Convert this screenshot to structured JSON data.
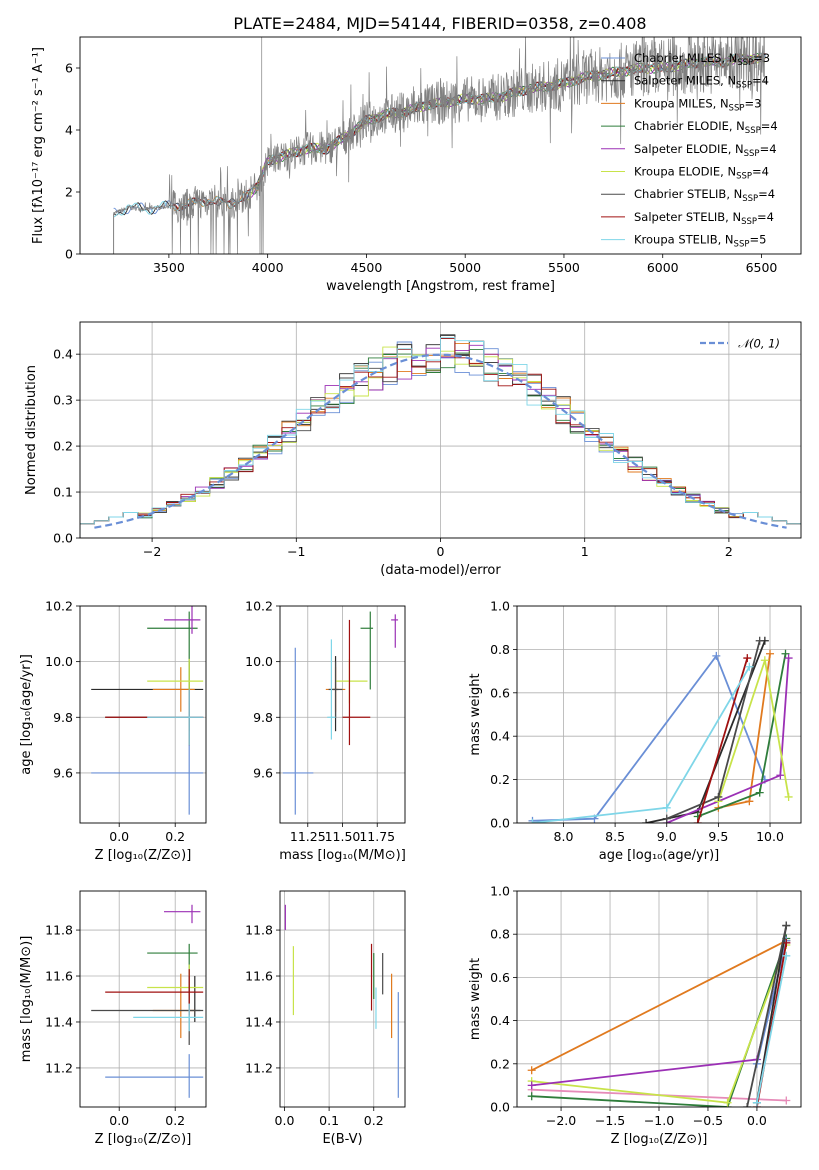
{
  "figure": {
    "title": "PLATE=2484, MJD=54144, FIBERID=0358, z=0.408"
  },
  "models": [
    {
      "name": "Chabrier MILES",
      "n": "3",
      "color": "#6a8fd6"
    },
    {
      "name": "Salpeter MILES",
      "n": "4",
      "color": "#2b2b2b"
    },
    {
      "name": "Kroupa MILES",
      "n": "3",
      "color": "#e07a1f"
    },
    {
      "name": "Chabrier ELODIE",
      "n": "4",
      "color": "#2f7d3b"
    },
    {
      "name": "Salpeter ELODIE",
      "n": "4",
      "color": "#9b30b5"
    },
    {
      "name": "Kroupa ELODIE",
      "n": "4",
      "color": "#c8e34a"
    },
    {
      "name": "Chabrier STELIB",
      "n": "4",
      "color": "#4a4a4a"
    },
    {
      "name": "Salpeter STELIB",
      "n": "4",
      "color": "#a01010"
    },
    {
      "name": "Kroupa STELIB",
      "n": "5",
      "color": "#7fd6e8"
    }
  ],
  "chart_data": [
    {
      "id": "spectrum",
      "type": "line",
      "xlabel": "wavelength [Angstrom, rest frame]",
      "ylabel": "Flux [fλ10⁻¹⁷ erg cm⁻² s⁻¹ A⁻¹]",
      "xlim": [
        3050,
        6700
      ],
      "ylim": [
        0,
        7
      ],
      "xticks": [
        3500,
        4000,
        4500,
        5000,
        5500,
        6000,
        6500
      ],
      "yticks": [
        0,
        2,
        4,
        6
      ],
      "data_color": "#808080",
      "continuum": [
        [
          3220,
          1.3
        ],
        [
          3300,
          1.5
        ],
        [
          3400,
          1.45
        ],
        [
          3500,
          1.55
        ],
        [
          3600,
          1.6
        ],
        [
          3700,
          1.75
        ],
        [
          3800,
          1.6
        ],
        [
          3900,
          1.9
        ],
        [
          3950,
          2.2
        ],
        [
          4000,
          3.0
        ],
        [
          4100,
          3.2
        ],
        [
          4200,
          3.4
        ],
        [
          4300,
          3.4
        ],
        [
          4400,
          3.8
        ],
        [
          4500,
          4.3
        ],
        [
          4600,
          4.5
        ],
        [
          4700,
          4.6
        ],
        [
          4800,
          4.8
        ],
        [
          4900,
          4.9
        ],
        [
          5000,
          5.0
        ],
        [
          5100,
          5.0
        ],
        [
          5200,
          5.1
        ],
        [
          5300,
          5.3
        ],
        [
          5400,
          5.4
        ],
        [
          5500,
          5.5
        ],
        [
          5600,
          5.7
        ],
        [
          5700,
          5.8
        ],
        [
          5800,
          5.9
        ],
        [
          5900,
          6.0
        ],
        [
          6000,
          6.0
        ],
        [
          6100,
          6.1
        ],
        [
          6200,
          6.2
        ],
        [
          6300,
          6.2
        ],
        [
          6400,
          6.3
        ],
        [
          6520,
          6.3
        ]
      ],
      "model_starts": [
        3220,
        3220,
        3520,
        3900,
        3900,
        3900,
        3520,
        3520,
        3220
      ],
      "grid": false
    },
    {
      "id": "residuals",
      "type": "histogram",
      "xlabel": "(data-model)/error",
      "ylabel": "Normed distribution",
      "xlim": [
        -2.5,
        2.5
      ],
      "ylim": [
        0,
        0.47
      ],
      "xticks": [
        -2,
        -1,
        0,
        1,
        2
      ],
      "yticks": [
        0.0,
        0.1,
        0.2,
        0.3,
        0.4
      ],
      "reference_label": "𝒩(0, 1)",
      "reference_color": "#6a8fd6",
      "bins": [
        -2.5,
        2.5,
        50
      ],
      "grid": true
    },
    {
      "id": "age_vs_Z",
      "type": "scatter",
      "xlabel": "Z [log₁₀(Z/Z⊙)]",
      "ylabel": "age  [log₁₀(age/yr)]",
      "xlim": [
        -0.14,
        0.31
      ],
      "ylim": [
        9.42,
        10.2
      ],
      "xticks": [
        0.0,
        0.2
      ],
      "yticks": [
        9.6,
        9.8,
        10.0,
        10.2
      ],
      "points": [
        {
          "m": 0,
          "x": 0.25,
          "y": 9.6,
          "xerr": [
            0.35,
            0.05
          ],
          "yerr": [
            0.15,
            0.15
          ]
        },
        {
          "m": 1,
          "x": 0.25,
          "y": 9.9,
          "xerr": [
            0.35,
            0.05
          ],
          "yerr": [
            0.15,
            0.1
          ]
        },
        {
          "m": 2,
          "x": 0.22,
          "y": 9.9,
          "xerr": [
            0.1,
            0.05
          ],
          "yerr": [
            0.08,
            0.08
          ]
        },
        {
          "m": 3,
          "x": 0.25,
          "y": 10.12,
          "xerr": [
            0.15,
            0.03
          ],
          "yerr": [
            0.22,
            0.06
          ]
        },
        {
          "m": 4,
          "x": 0.26,
          "y": 10.15,
          "xerr": [
            0.1,
            0.03
          ],
          "yerr": [
            0.05,
            0.05
          ]
        },
        {
          "m": 5,
          "x": 0.25,
          "y": 9.93,
          "xerr": [
            0.15,
            0.05
          ],
          "yerr": [
            0.08,
            0.08
          ]
        },
        {
          "m": 6,
          "x": 0.25,
          "y": 9.8,
          "xerr": [
            0.3,
            0.05
          ],
          "yerr": [
            0.1,
            0.1
          ]
        },
        {
          "m": 7,
          "x": 0.25,
          "y": 9.8,
          "xerr": [
            0.3,
            0.05
          ],
          "yerr": [
            0.1,
            0.1
          ]
        },
        {
          "m": 8,
          "x": 0.25,
          "y": 9.8,
          "xerr": [
            0.15,
            0.05
          ],
          "yerr": [
            0.1,
            0.1
          ]
        }
      ],
      "grid": true
    },
    {
      "id": "age_vs_mass",
      "type": "scatter",
      "xlabel": "mass [log₁₀(M/M⊙)]",
      "ylabel": "",
      "xlim": [
        11.05,
        11.95
      ],
      "ylim": [
        9.42,
        10.2
      ],
      "xticks": [
        11.25,
        11.5,
        11.75
      ],
      "yticks": [
        9.6,
        9.8,
        10.0,
        10.2
      ],
      "xtick_labels": [
        "11.25",
        "11.50",
        "11.75"
      ],
      "points": [
        {
          "m": 0,
          "x": 11.16,
          "y": 9.6,
          "xerr": [
            0.09,
            0.13
          ],
          "yerr": [
            0.15,
            0.45
          ]
        },
        {
          "m": 1,
          "x": 11.45,
          "y": 9.9,
          "xerr": [
            0.02,
            0.02
          ],
          "yerr": [
            0.15,
            0.12
          ]
        },
        {
          "m": 2,
          "x": 11.45,
          "y": 9.9,
          "xerr": [
            0.07,
            0.07
          ],
          "yerr": [
            0.08,
            0.08
          ]
        },
        {
          "m": 3,
          "x": 11.7,
          "y": 10.12,
          "xerr": [
            0.07,
            0.02
          ],
          "yerr": [
            0.22,
            0.06
          ]
        },
        {
          "m": 4,
          "x": 11.88,
          "y": 10.15,
          "xerr": [
            0.03,
            0.02
          ],
          "yerr": [
            0.1,
            0.02
          ]
        },
        {
          "m": 5,
          "x": 11.55,
          "y": 9.93,
          "xerr": [
            0.1,
            0.13
          ],
          "yerr": [
            0.08,
            0.08
          ]
        },
        {
          "m": 6,
          "x": 11.45,
          "y": 9.9,
          "xerr": [
            0.05,
            0.05
          ],
          "yerr": [
            0.1,
            0.1
          ]
        },
        {
          "m": 7,
          "x": 11.55,
          "y": 9.8,
          "xerr": [
            0.05,
            0.15
          ],
          "yerr": [
            0.1,
            0.35
          ]
        },
        {
          "m": 8,
          "x": 11.42,
          "y": 9.8,
          "xerr": [
            0.03,
            0.03
          ],
          "yerr": [
            0.08,
            0.28
          ]
        }
      ],
      "grid": true
    },
    {
      "id": "weight_vs_age",
      "type": "line",
      "xlabel": "age  [log₁₀(age/yr)]",
      "ylabel": "mass weight",
      "xlim": [
        7.55,
        10.3
      ],
      "ylim": [
        0,
        1
      ],
      "xticks": [
        8.0,
        8.5,
        9.0,
        9.5,
        10.0
      ],
      "yticks": [
        0.0,
        0.2,
        0.4,
        0.6,
        0.8,
        1.0
      ],
      "series": [
        {
          "m": 0,
          "x": [
            7.7,
            8.3,
            9.48,
            9.95
          ],
          "y": [
            0.01,
            0.02,
            0.77,
            0.2
          ]
        },
        {
          "m": 1,
          "x": [
            8.8,
            9.3,
            9.95
          ],
          "y": [
            0.0,
            0.05,
            0.84
          ]
        },
        {
          "m": 2,
          "x": [
            9.5,
            9.8,
            10.0
          ],
          "y": [
            0.07,
            0.1,
            0.78
          ]
        },
        {
          "m": 3,
          "x": [
            9.3,
            9.9,
            10.15
          ],
          "y": [
            0.03,
            0.14,
            0.78
          ]
        },
        {
          "m": 4,
          "x": [
            9.0,
            10.1,
            10.18
          ],
          "y": [
            0.0,
            0.22,
            0.76
          ]
        },
        {
          "m": 5,
          "x": [
            9.5,
            9.95,
            10.18
          ],
          "y": [
            0.1,
            0.75,
            0.12
          ]
        },
        {
          "m": 6,
          "x": [
            9.0,
            9.5,
            9.9
          ],
          "y": [
            0.02,
            0.12,
            0.84
          ]
        },
        {
          "m": 7,
          "x": [
            9.3,
            9.78
          ],
          "y": [
            0.0,
            0.76
          ]
        },
        {
          "m": 8,
          "x": [
            7.7,
            9.0,
            9.8
          ],
          "y": [
            0.0,
            0.07,
            0.72
          ]
        }
      ],
      "grid": true
    },
    {
      "id": "mass_vs_Z",
      "type": "scatter",
      "xlabel": "Z [log₁₀(Z/Z⊙)]",
      "ylabel": "mass [log₁₀(M/M⊙)]",
      "xlim": [
        -0.14,
        0.31
      ],
      "ylim": [
        11.03,
        11.97
      ],
      "xticks": [
        0.0,
        0.2
      ],
      "yticks": [
        11.2,
        11.4,
        11.6,
        11.8
      ],
      "points": [
        {
          "m": 0,
          "x": 0.25,
          "y": 11.16,
          "xerr": [
            0.3,
            0.05
          ],
          "yerr": [
            0.09,
            0.1
          ]
        },
        {
          "m": 1,
          "x": 0.27,
          "y": 11.45,
          "xerr": [
            0.02,
            0.02
          ],
          "yerr": [
            0.05,
            0.15
          ]
        },
        {
          "m": 2,
          "x": 0.22,
          "y": 11.45,
          "xerr": [
            0.1,
            0.05
          ],
          "yerr": [
            0.12,
            0.16
          ]
        },
        {
          "m": 3,
          "x": 0.25,
          "y": 11.7,
          "xerr": [
            0.15,
            0.03
          ],
          "yerr": [
            0.1,
            0.04
          ]
        },
        {
          "m": 4,
          "x": 0.26,
          "y": 11.88,
          "xerr": [
            0.1,
            0.03
          ],
          "yerr": [
            0.05,
            0.03
          ]
        },
        {
          "m": 5,
          "x": 0.25,
          "y": 11.55,
          "xerr": [
            0.15,
            0.05
          ],
          "yerr": [
            0.1,
            0.1
          ]
        },
        {
          "m": 6,
          "x": 0.25,
          "y": 11.45,
          "xerr": [
            0.35,
            0.05
          ],
          "yerr": [
            0.15,
            0.15
          ]
        },
        {
          "m": 7,
          "x": 0.25,
          "y": 11.53,
          "xerr": [
            0.3,
            0.05
          ],
          "yerr": [
            0.1,
            0.1
          ]
        },
        {
          "m": 8,
          "x": 0.25,
          "y": 11.42,
          "xerr": [
            0.2,
            0.05
          ],
          "yerr": [
            0.06,
            0.06
          ]
        }
      ],
      "grid": true
    },
    {
      "id": "mass_vs_ebv",
      "type": "scatter",
      "xlabel": "E(B-V)",
      "ylabel": "",
      "xlim": [
        -0.01,
        0.27
      ],
      "ylim": [
        11.03,
        11.97
      ],
      "xticks": [
        0.0,
        0.1,
        0.2
      ],
      "yticks": [
        11.2,
        11.4,
        11.6,
        11.8
      ],
      "points": [
        {
          "m": 0,
          "x": 0.255,
          "y": 11.16,
          "xerr": [
            0,
            0
          ],
          "yerr": [
            0.09,
            0.37
          ]
        },
        {
          "m": 2,
          "x": 0.24,
          "y": 11.45,
          "xerr": [
            0,
            0
          ],
          "yerr": [
            0.12,
            0.16
          ]
        },
        {
          "m": 3,
          "x": 0.2,
          "y": 11.6,
          "xerr": [
            0,
            0
          ],
          "yerr": [
            0.1,
            0.1
          ]
        },
        {
          "m": 4,
          "x": 0.002,
          "y": 11.85,
          "xerr": [
            0,
            0
          ],
          "yerr": [
            0.05,
            0.06
          ]
        },
        {
          "m": 5,
          "x": 0.02,
          "y": 11.6,
          "xerr": [
            0,
            0
          ],
          "yerr": [
            0.17,
            0.13
          ]
        },
        {
          "m": 6,
          "x": 0.22,
          "y": 11.6,
          "xerr": [
            0,
            0
          ],
          "yerr": [
            0.08,
            0.1
          ]
        },
        {
          "m": 7,
          "x": 0.195,
          "y": 11.6,
          "xerr": [
            0,
            0
          ],
          "yerr": [
            0.15,
            0.14
          ]
        },
        {
          "m": 8,
          "x": 0.205,
          "y": 11.45,
          "xerr": [
            0,
            0
          ],
          "yerr": [
            0.08,
            0.1
          ]
        }
      ],
      "grid": true
    },
    {
      "id": "weight_vs_Z",
      "type": "line",
      "xlabel": "Z [log₁₀(Z/Z⊙)]",
      "ylabel": "mass weight",
      "xlim": [
        -2.45,
        0.45
      ],
      "ylim": [
        0,
        1
      ],
      "xticks": [
        -2.0,
        -1.5,
        -1.0,
        -0.5,
        0.0
      ],
      "yticks": [
        0.0,
        0.2,
        0.4,
        0.6,
        0.8,
        1.0
      ],
      "series": [
        {
          "m": 2,
          "x": [
            -2.3,
            0.3
          ],
          "y": [
            0.17,
            0.77
          ]
        },
        {
          "m": 3,
          "x": [
            -2.3,
            -0.3,
            0.3
          ],
          "y": [
            0.05,
            0.0,
            0.78
          ]
        },
        {
          "m": 5,
          "x": [
            -2.3,
            -0.3,
            0.3
          ],
          "y": [
            0.12,
            0.02,
            0.75
          ]
        },
        {
          "m": 4,
          "x": [
            -2.3,
            0.0,
            0.3
          ],
          "y": [
            0.1,
            0.22,
            0.76
          ]
        },
        {
          "m": 0,
          "x": [
            0.0,
            0.3
          ],
          "y": [
            0.2,
            0.77
          ]
        },
        {
          "m": 1,
          "x": [
            0.0,
            0.3
          ],
          "y": [
            0.02,
            0.84
          ]
        },
        {
          "m": 7,
          "x": [
            0.0,
            0.3
          ],
          "y": [
            0.0,
            0.76
          ]
        },
        {
          "m": 8,
          "x": [
            0.0,
            0.3
          ],
          "y": [
            0.02,
            0.7
          ]
        },
        {
          "m": 6,
          "x": [
            -0.1,
            0.3
          ],
          "y": [
            0.0,
            0.84
          ]
        }
      ],
      "pink_series": {
        "color": "#e68bb8",
        "x": [
          -2.3,
          0.3
        ],
        "y": [
          0.08,
          0.03
        ]
      },
      "grid": true
    }
  ]
}
